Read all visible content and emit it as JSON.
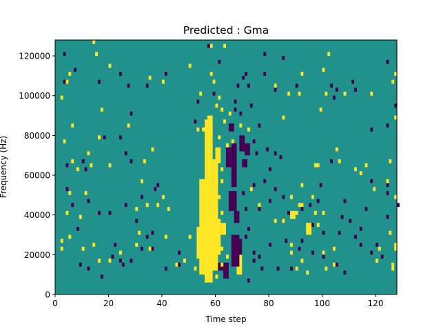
{
  "chart_data": {
    "type": "heatmap",
    "title": "Predicted : Gma",
    "xlabel": "Time step",
    "ylabel": "Frequency (Hz)",
    "xlim": [
      0,
      128
    ],
    "ylim": [
      0,
      128000
    ],
    "x_ticks": [
      0,
      20,
      40,
      60,
      80,
      100,
      120
    ],
    "y_ticks": [
      0,
      20000,
      40000,
      60000,
      80000,
      100000,
      120000
    ],
    "x_tick_labels": [
      "0",
      "20",
      "40",
      "60",
      "80",
      "100",
      "120"
    ],
    "y_tick_labels": [
      "0",
      "20000",
      "40000",
      "60000",
      "80000",
      "100000",
      "120000"
    ],
    "bin_width": 1,
    "bin_height": 2000,
    "colors": {
      "background": "#21918c",
      "high": "#fde725",
      "low": "#440154"
    },
    "low_cells": [
      [
        3,
        120000
      ],
      [
        7,
        112000
      ],
      [
        3,
        106000
      ],
      [
        16,
        106000
      ],
      [
        24,
        110000
      ],
      [
        27,
        104000
      ],
      [
        34,
        104000
      ],
      [
        41,
        110000
      ],
      [
        57,
        124000
      ],
      [
        61,
        116000
      ],
      [
        59,
        100000
      ],
      [
        71,
        110000
      ],
      [
        72,
        104000
      ],
      [
        85,
        118000
      ],
      [
        78,
        110000
      ],
      [
        82,
        102000
      ],
      [
        90,
        104000
      ],
      [
        103,
        104000
      ],
      [
        105,
        102000
      ],
      [
        104,
        98000
      ],
      [
        111,
        106000
      ],
      [
        112,
        102000
      ],
      [
        124,
        116000
      ],
      [
        127,
        94000
      ],
      [
        18,
        78000
      ],
      [
        24,
        78000
      ],
      [
        28,
        90000
      ],
      [
        26,
        70000
      ],
      [
        10,
        66000
      ],
      [
        4,
        64000
      ],
      [
        11,
        62000
      ],
      [
        28,
        66000
      ],
      [
        4,
        52000
      ],
      [
        6,
        44000
      ],
      [
        12,
        46000
      ],
      [
        16,
        40000
      ],
      [
        8,
        32000
      ],
      [
        20,
        40000
      ],
      [
        26,
        44000
      ],
      [
        32,
        48000
      ],
      [
        38,
        54000
      ],
      [
        37,
        52000
      ],
      [
        30,
        36000
      ],
      [
        36,
        30000
      ],
      [
        34,
        28000
      ],
      [
        22,
        24000
      ],
      [
        28,
        16000
      ],
      [
        24,
        16000
      ],
      [
        25,
        14000
      ],
      [
        21,
        18000
      ],
      [
        32,
        22000
      ],
      [
        36,
        22000
      ],
      [
        9,
        14000
      ],
      [
        12,
        12000
      ],
      [
        17,
        8000
      ],
      [
        41,
        12000
      ],
      [
        46,
        20000
      ],
      [
        46,
        14000
      ],
      [
        70,
        108000
      ],
      [
        68,
        104000
      ],
      [
        67,
        96000
      ],
      [
        67,
        92000
      ],
      [
        69,
        90000
      ],
      [
        73,
        94000
      ],
      [
        76,
        84000
      ],
      [
        74,
        76000
      ],
      [
        75,
        70000
      ],
      [
        79,
        72000
      ],
      [
        82,
        70000
      ],
      [
        84,
        68000
      ],
      [
        80,
        62000
      ],
      [
        78,
        56000
      ],
      [
        74,
        54000
      ],
      [
        70,
        50000
      ],
      [
        71,
        42000
      ],
      [
        76,
        42000
      ],
      [
        80,
        46000
      ],
      [
        82,
        52000
      ],
      [
        85,
        48000
      ],
      [
        87,
        40000
      ],
      [
        92,
        42000
      ],
      [
        95,
        44000
      ],
      [
        98,
        46000
      ],
      [
        96,
        34000
      ],
      [
        100,
        30000
      ],
      [
        92,
        26000
      ],
      [
        86,
        26000
      ],
      [
        80,
        24000
      ],
      [
        72,
        32000
      ],
      [
        71,
        28000
      ],
      [
        74,
        20000
      ],
      [
        76,
        18000
      ],
      [
        74,
        16000
      ],
      [
        77,
        12000
      ],
      [
        72,
        6000
      ],
      [
        83,
        12000
      ],
      [
        88,
        12000
      ],
      [
        91,
        22000
      ],
      [
        96,
        20000
      ],
      [
        100,
        18000
      ],
      [
        105,
        14000
      ],
      [
        108,
        10000
      ],
      [
        114,
        24000
      ],
      [
        118,
        20000
      ],
      [
        120,
        24000
      ],
      [
        122,
        18000
      ],
      [
        124,
        38000
      ],
      [
        124,
        50000
      ],
      [
        128,
        44000
      ],
      [
        106,
        30000
      ],
      [
        107,
        38000
      ],
      [
        114,
        32000
      ],
      [
        103,
        66000
      ],
      [
        99,
        54000
      ],
      [
        108,
        46000
      ],
      [
        110,
        36000
      ],
      [
        112,
        28000
      ],
      [
        116,
        42000
      ],
      [
        118,
        56000
      ],
      [
        124,
        54000
      ],
      [
        118,
        82000
      ],
      [
        124,
        84000
      ],
      [
        52,
        86000
      ],
      [
        53,
        96000
      ],
      [
        78,
        120000
      ]
    ],
    "high_cells": [
      [
        14,
        126000
      ],
      [
        15,
        120000
      ],
      [
        20,
        114000
      ],
      [
        5,
        110000
      ],
      [
        4,
        106000
      ],
      [
        35,
        108000
      ],
      [
        40,
        106000
      ],
      [
        50,
        114000
      ],
      [
        54,
        100000
      ],
      [
        58,
        124000
      ],
      [
        63,
        124000
      ],
      [
        58,
        110000
      ],
      [
        59,
        106000
      ],
      [
        61,
        98000
      ],
      [
        60,
        94000
      ],
      [
        62,
        92000
      ],
      [
        65,
        90000
      ],
      [
        69,
        84000
      ],
      [
        63,
        86000
      ],
      [
        82,
        104000
      ],
      [
        92,
        110000
      ],
      [
        87,
        100000
      ],
      [
        91,
        100000
      ],
      [
        99,
        92000
      ],
      [
        100,
        112000
      ],
      [
        101,
        100000
      ],
      [
        102,
        120000
      ],
      [
        108,
        100000
      ],
      [
        127,
        110000
      ],
      [
        126,
        106000
      ],
      [
        118,
        100000
      ],
      [
        127,
        88000
      ],
      [
        85,
        88000
      ],
      [
        53,
        82000
      ],
      [
        55,
        82000
      ],
      [
        58,
        80000
      ],
      [
        61,
        78000
      ],
      [
        64,
        74000
      ],
      [
        72,
        82000
      ],
      [
        17,
        92000
      ],
      [
        27,
        84000
      ],
      [
        6,
        84000
      ],
      [
        2,
        98000
      ],
      [
        16,
        78000
      ],
      [
        13,
        64000
      ],
      [
        20,
        64000
      ],
      [
        12,
        70000
      ],
      [
        3,
        76000
      ],
      [
        6,
        66000
      ],
      [
        8,
        62000
      ],
      [
        33,
        66000
      ],
      [
        36,
        72000
      ],
      [
        32,
        56000
      ],
      [
        40,
        48000
      ],
      [
        34,
        44000
      ],
      [
        38,
        44000
      ],
      [
        30,
        42000
      ],
      [
        42,
        42000
      ],
      [
        5,
        50000
      ],
      [
        9,
        38000
      ],
      [
        11,
        50000
      ],
      [
        4,
        40000
      ],
      [
        2,
        26000
      ],
      [
        2,
        22000
      ],
      [
        5,
        28000
      ],
      [
        10,
        22000
      ],
      [
        14,
        24000
      ],
      [
        16,
        16000
      ],
      [
        20,
        16000
      ],
      [
        24,
        20000
      ],
      [
        31,
        30000
      ],
      [
        30,
        24000
      ],
      [
        35,
        22000
      ],
      [
        41,
        28000
      ],
      [
        50,
        28000
      ],
      [
        45,
        14000
      ],
      [
        48,
        16000
      ],
      [
        52,
        12000
      ],
      [
        56,
        8000
      ],
      [
        60,
        8000
      ],
      [
        62,
        14000
      ],
      [
        64,
        18000
      ],
      [
        62,
        22000
      ],
      [
        60,
        30000
      ],
      [
        62,
        40000
      ],
      [
        61,
        48000
      ],
      [
        62,
        56000
      ],
      [
        62,
        62000
      ],
      [
        58,
        72000
      ],
      [
        57,
        66000
      ],
      [
        66,
        76000
      ],
      [
        73,
        52000
      ],
      [
        76,
        44000
      ],
      [
        82,
        36000
      ],
      [
        85,
        36000
      ],
      [
        90,
        40000
      ],
      [
        88,
        48000
      ],
      [
        92,
        54000
      ],
      [
        96,
        48000
      ],
      [
        97,
        40000
      ],
      [
        98,
        34000
      ],
      [
        100,
        40000
      ],
      [
        88,
        24000
      ],
      [
        88,
        20000
      ],
      [
        92,
        16000
      ],
      [
        90,
        12000
      ],
      [
        94,
        10000
      ],
      [
        100,
        20000
      ],
      [
        104,
        22000
      ],
      [
        104,
        14000
      ],
      [
        101,
        12000
      ],
      [
        120,
        16000
      ],
      [
        121,
        22000
      ],
      [
        126,
        14000
      ],
      [
        127,
        22000
      ],
      [
        126,
        12000
      ],
      [
        127,
        24000
      ],
      [
        125,
        30000
      ],
      [
        127,
        48000
      ],
      [
        125,
        66000
      ],
      [
        124,
        56000
      ],
      [
        119,
        52000
      ],
      [
        105,
        72000
      ],
      [
        106,
        66000
      ],
      [
        112,
        62000
      ],
      [
        116,
        64000
      ],
      [
        114,
        60000
      ]
    ],
    "high_blocks": [
      [
        56,
        6000,
        3,
        82000
      ],
      [
        54,
        10000,
        2,
        48000
      ],
      [
        58,
        12000,
        3,
        34000
      ],
      [
        53,
        18000,
        5,
        16000
      ],
      [
        57,
        88000,
        2,
        2000
      ],
      [
        60,
        20000,
        2,
        18000
      ],
      [
        59,
        40000,
        2,
        28000
      ],
      [
        60,
        66000,
        2,
        8000
      ],
      [
        68,
        10000,
        2,
        10000
      ],
      [
        62,
        30000,
        2,
        6000
      ],
      [
        88,
        38000,
        2,
        4000
      ],
      [
        94,
        30000,
        2,
        6000
      ],
      [
        91,
        44000,
        2,
        2000
      ],
      [
        97,
        64000,
        2,
        2000
      ]
    ],
    "low_blocks": [
      [
        65,
        42000,
        3,
        10000
      ],
      [
        66,
        54000,
        2,
        22000
      ],
      [
        64,
        64000,
        2,
        10000
      ],
      [
        66,
        14000,
        3,
        16000
      ],
      [
        68,
        20000,
        2,
        8000
      ],
      [
        69,
        72000,
        2,
        8000
      ],
      [
        71,
        70000,
        2,
        6000
      ],
      [
        63,
        8000,
        2,
        8000
      ],
      [
        61,
        12000,
        2,
        4000
      ],
      [
        65,
        82000,
        2,
        4000
      ],
      [
        67,
        36000,
        2,
        6000
      ],
      [
        70,
        64000,
        2,
        4000
      ]
    ]
  }
}
